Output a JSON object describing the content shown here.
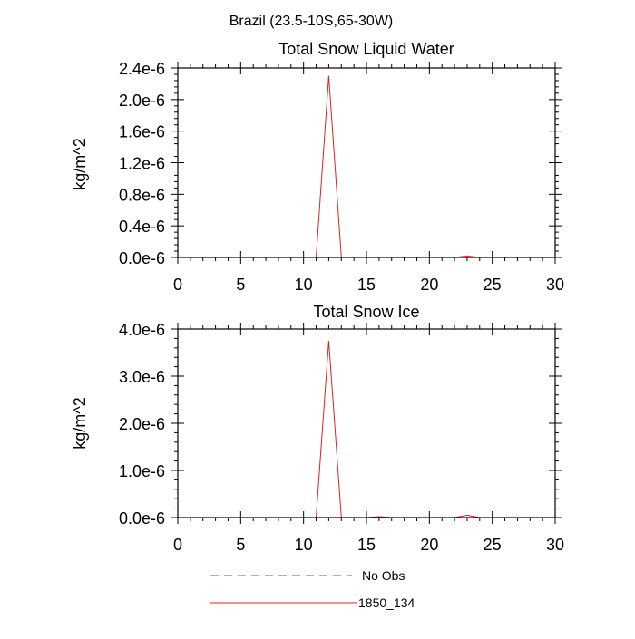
{
  "figure": {
    "title": "Brazil (23.5-10S,65-30W)"
  },
  "chart_data": [
    {
      "type": "line",
      "title": "Total Snow Liquid Water",
      "xlabel": "",
      "ylabel": "kg/m^2",
      "xlim": [
        0,
        30
      ],
      "ylim": [
        0,
        2.4e-06
      ],
      "xticks": [
        "0",
        "5",
        "10",
        "15",
        "20",
        "25",
        "30"
      ],
      "xtick_values": [
        0,
        5,
        10,
        15,
        20,
        25,
        30
      ],
      "yticks": [
        "0.0e-6",
        "0.4e-6",
        "0.8e-6",
        "1.2e-6",
        "1.6e-6",
        "2.0e-6",
        "2.4e-6"
      ],
      "ytick_values": [
        0,
        4e-07,
        8e-07,
        1.2e-06,
        1.6e-06,
        2e-06,
        2.4e-06
      ],
      "series": [
        {
          "name": "1850_134",
          "color": "#e02020",
          "style": "solid",
          "x": [
            0,
            11,
            12,
            13,
            15,
            16,
            17,
            22,
            23,
            24,
            30
          ],
          "y": [
            0,
            0,
            2.3e-06,
            0,
            0,
            5e-09,
            0,
            0,
            2e-08,
            0,
            0
          ]
        }
      ]
    },
    {
      "type": "line",
      "title": "Total Snow Ice",
      "xlabel": "",
      "ylabel": "kg/m^2",
      "xlim": [
        0,
        30
      ],
      "ylim": [
        0,
        4e-06
      ],
      "xticks": [
        "0",
        "5",
        "10",
        "15",
        "20",
        "25",
        "30"
      ],
      "xtick_values": [
        0,
        5,
        10,
        15,
        20,
        25,
        30
      ],
      "yticks": [
        "0.0e-6",
        "1.0e-6",
        "2.0e-6",
        "3.0e-6",
        "4.0e-6"
      ],
      "ytick_values": [
        0,
        1e-06,
        2e-06,
        3e-06,
        4e-06
      ],
      "series": [
        {
          "name": "1850_134",
          "color": "#e02020",
          "style": "solid",
          "x": [
            0,
            11,
            12,
            13,
            15,
            16,
            17,
            22,
            23,
            24,
            30
          ],
          "y": [
            0,
            0,
            3.75e-06,
            0,
            0,
            2e-08,
            0,
            0,
            5e-08,
            0,
            0
          ]
        }
      ]
    }
  ],
  "legend": {
    "placement": "bottom",
    "items": [
      {
        "label": "No Obs",
        "color": "#5a5aa0",
        "style": "dashed"
      },
      {
        "label": "1850_134",
        "color": "#e02020",
        "style": "solid"
      }
    ]
  }
}
